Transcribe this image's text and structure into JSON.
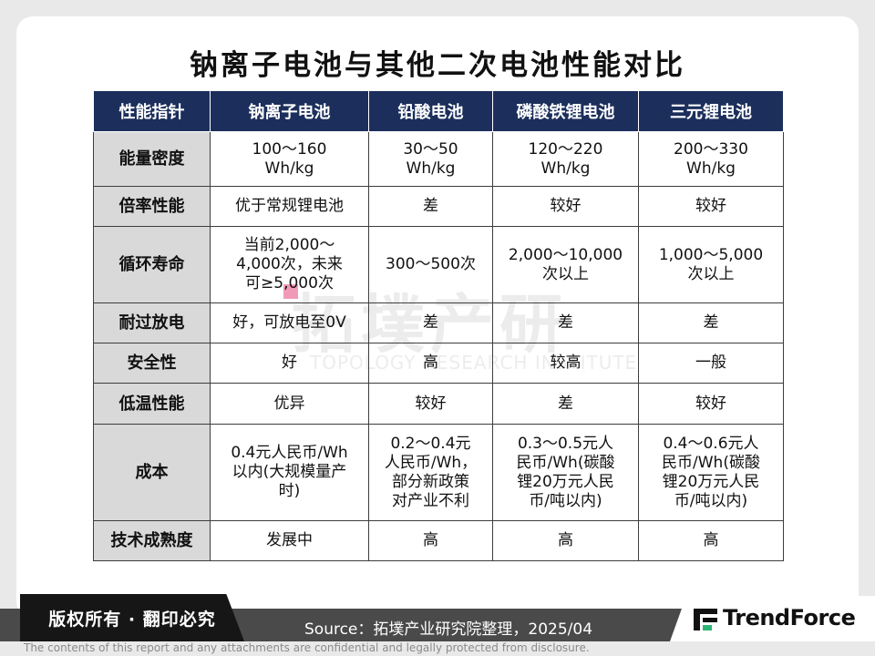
{
  "title": "钠离子电池与其他二次电池性能对比",
  "watermark": {
    "cn": "拓墣产研",
    "en": "TOPOLOGY RESEARCH INSTITUTE"
  },
  "table": {
    "headers": [
      "性能指针",
      "钠离子电池",
      "铅酸电池",
      "磷酸铁锂电池",
      "三元锂电池"
    ],
    "rows": [
      {
        "label": "能量密度",
        "cells": [
          "100～160\nWh/kg",
          "30～50\nWh/kg",
          "120～220\nWh/kg",
          "200～330\nWh/kg"
        ]
      },
      {
        "label": "倍率性能",
        "cells": [
          "优于常规锂电池",
          "差",
          "较好",
          "较好"
        ]
      },
      {
        "label": "循环寿命",
        "cells": [
          "当前2,000～\n4,000次，未来\n可≥5,000次",
          "300～500次",
          "2,000～10,000\n次以上",
          "1,000～5,000\n次以上"
        ]
      },
      {
        "label": "耐过放电",
        "cells": [
          "好，可放电至0V",
          "差",
          "差",
          "差"
        ]
      },
      {
        "label": "安全性",
        "cells": [
          "好",
          "高",
          "较高",
          "一般"
        ]
      },
      {
        "label": "低温性能",
        "cells": [
          "优异",
          "较好",
          "差",
          "较好"
        ]
      },
      {
        "label": "成本",
        "cells": [
          "0.4元人民币/Wh\n以内(大规模量产\n时)",
          "0.2～0.4元\n人民币/Wh，\n部分新政策\n对产业不利",
          "0.3～0.5元人\n民币/Wh(碳酸\n锂20万元人民\n币/吨以内)",
          "0.4～0.6元人\n民币/Wh(碳酸\n锂20万元人民\n币/吨以内)"
        ]
      },
      {
        "label": "技术成熟度",
        "cells": [
          "发展中",
          "高",
          "高",
          "高"
        ]
      }
    ]
  },
  "footer": {
    "copyright": "版权所有 · 翻印必究",
    "source": "Source：拓墣产业研究院整理，2025/04",
    "logo_text": "TrendForce",
    "disclaimer": "The contents of this report and any attachments are confidential and legally protected from disclosure."
  },
  "colors": {
    "header_bg": "#1c2f5c",
    "label_bg": "#d9d9d9",
    "footer_bar": "#4a4a4a",
    "copyright_bg": "#161616"
  },
  "icons": {
    "logo": "trendforce-logo-icon"
  }
}
